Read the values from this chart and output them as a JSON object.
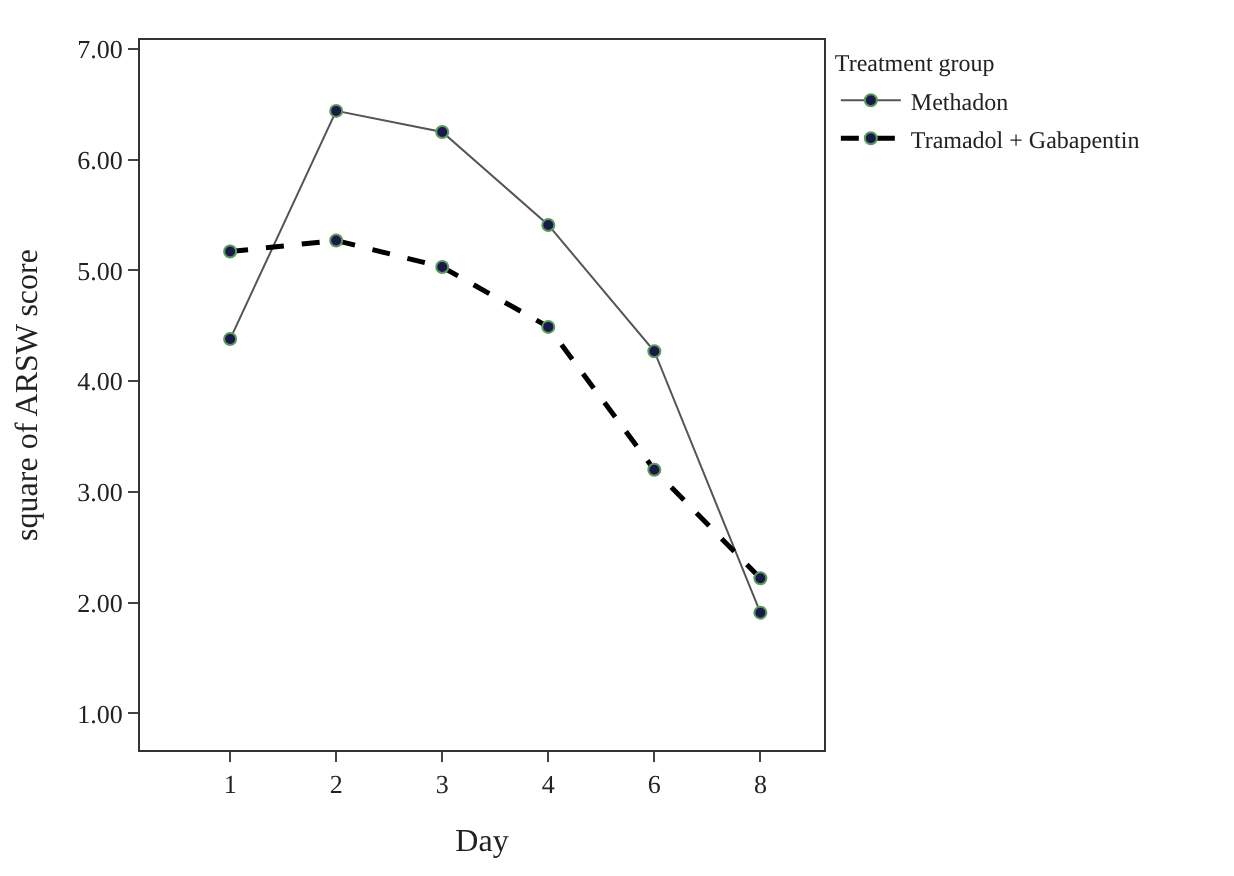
{
  "chart_data": {
    "type": "line",
    "xlabel": "Day",
    "ylabel": "square of ARSW score",
    "legend_title": "Treatment group",
    "categories": [
      "1",
      "2",
      "3",
      "4",
      "6",
      "8"
    ],
    "series": [
      {
        "name": "Methadon",
        "color": "#555555",
        "line_style": "solid",
        "values": [
          4.38,
          6.44,
          6.25,
          5.41,
          4.27,
          1.91
        ]
      },
      {
        "name": "Tramadol + Gabapentin",
        "color": "#000000",
        "line_style": "dashed",
        "values": [
          5.17,
          5.27,
          5.03,
          4.49,
          3.2,
          2.22
        ]
      }
    ],
    "ylim": [
      0.67,
      7.08
    ],
    "yticks": [
      {
        "value": 1,
        "label": "1.00"
      },
      {
        "value": 2,
        "label": "2.00"
      },
      {
        "value": 3,
        "label": "3.00"
      },
      {
        "value": 4,
        "label": "4.00"
      },
      {
        "value": 5,
        "label": "5.00"
      },
      {
        "value": 6,
        "label": "6.00"
      },
      {
        "value": 7,
        "label": "7.00"
      }
    ],
    "legend": "top right",
    "marker": "circle"
  }
}
